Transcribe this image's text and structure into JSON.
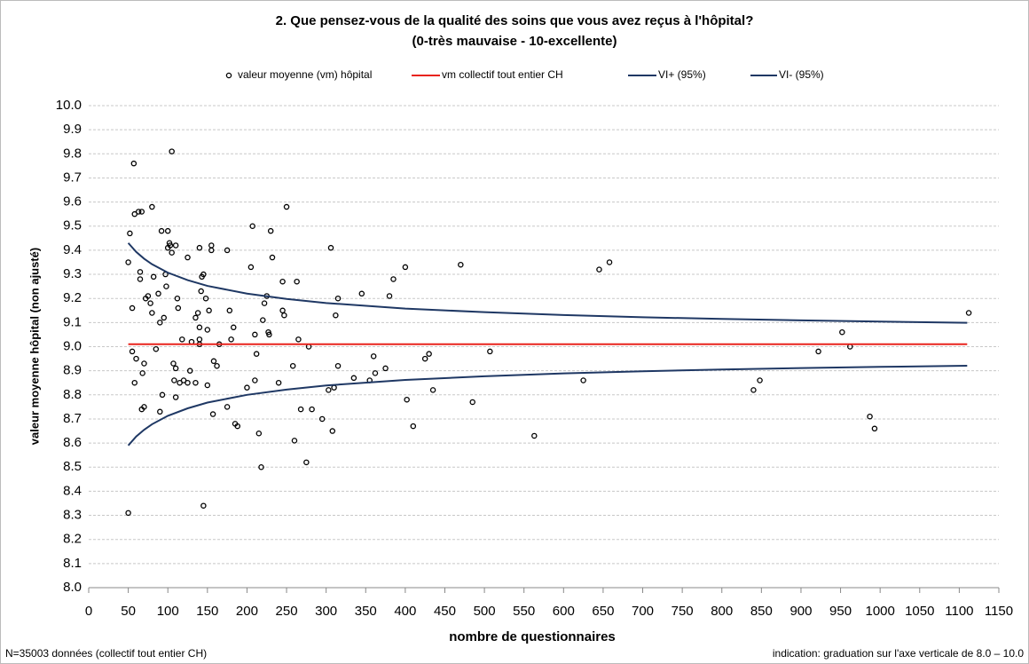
{
  "chart_data": {
    "type": "scatter",
    "title": "2. Que pensez-vous de la qualité des soins que vous avez reçus à l'hôpital?",
    "subtitle": "(0-très mauvaise - 10-excellente)",
    "x_label": "nombre de questionnaires",
    "y_label": "valeur moyenne hôpital (non ajusté)",
    "footnote_left": "N=35003 données (collectif tout entier CH)",
    "footnote_right": "indication: graduation sur l'axe verticale de 8.0 – 10.0",
    "xlim": [
      0,
      1150
    ],
    "xticks": [
      0,
      50,
      100,
      150,
      200,
      250,
      300,
      350,
      400,
      450,
      500,
      550,
      600,
      650,
      700,
      750,
      800,
      850,
      900,
      950,
      1000,
      1050,
      1100,
      1150
    ],
    "ylim": [
      8,
      10
    ],
    "yticks": [
      {
        "value": 8,
        "label": "8.0"
      },
      8.1,
      8.2,
      8.3,
      8.4,
      8.5,
      8.6,
      8.7,
      8.8,
      8.9,
      {
        "value": 9,
        "label": "9.0"
      },
      9.1,
      9.2,
      9.3,
      9.4,
      9.5,
      9.6,
      9.7,
      9.8,
      9.9,
      {
        "value": 10,
        "label": "10.0"
      }
    ],
    "grid": true,
    "series": [
      {
        "name": "valeur moyenne (vm) hôpital",
        "type": "scatter",
        "color": "#000000",
        "x": [
          50,
          52,
          55,
          55,
          57,
          58,
          58,
          60,
          63,
          65,
          65,
          67,
          67,
          68,
          70,
          70,
          72,
          75,
          78,
          80,
          80,
          82,
          85,
          88,
          90,
          90,
          92,
          93,
          95,
          97,
          98,
          100,
          100,
          102,
          103,
          105,
          105,
          107,
          108,
          110,
          110,
          110,
          112,
          113,
          115,
          118,
          120,
          125,
          125,
          128,
          130,
          135,
          135,
          138,
          140,
          140,
          140,
          140,
          142,
          143,
          145,
          145,
          148,
          150,
          150,
          152,
          155,
          155,
          157,
          158,
          162,
          165,
          175,
          175,
          178,
          180,
          183,
          185,
          188,
          200,
          205,
          207,
          210,
          210,
          212,
          215,
          218,
          220,
          222,
          225,
          227,
          228,
          230,
          232,
          240,
          245,
          245,
          247,
          250,
          258,
          260,
          263,
          265,
          268,
          275,
          278,
          282,
          295,
          303,
          306,
          308,
          310,
          312,
          315,
          315,
          335,
          345,
          355,
          360,
          362,
          375,
          380,
          385,
          400,
          402,
          410,
          425,
          430,
          435,
          470,
          485,
          507,
          563,
          625,
          645,
          658,
          840,
          848,
          922,
          952,
          962,
          987,
          993,
          1112,
          50
        ],
        "values": [
          9.35,
          9.47,
          9.16,
          8.98,
          9.76,
          9.55,
          8.85,
          8.95,
          9.56,
          9.28,
          9.31,
          9.56,
          8.74,
          8.89,
          8.75,
          8.93,
          9.2,
          9.21,
          9.18,
          9.58,
          9.14,
          9.29,
          8.99,
          9.22,
          9.1,
          8.73,
          9.48,
          8.8,
          9.12,
          9.3,
          9.25,
          9.41,
          9.48,
          9.43,
          9.42,
          9.81,
          9.39,
          8.93,
          8.86,
          8.79,
          8.91,
          9.42,
          9.2,
          9.16,
          8.85,
          9.03,
          8.86,
          9.37,
          8.85,
          8.9,
          9.02,
          8.85,
          9.12,
          9.14,
          9.41,
          9.03,
          9.01,
          9.08,
          9.23,
          9.29,
          8.34,
          9.3,
          9.2,
          8.84,
          9.07,
          9.15,
          9.42,
          9.4,
          8.72,
          8.94,
          8.92,
          9.01,
          9.4,
          8.75,
          9.15,
          9.03,
          9.08,
          8.68,
          8.67,
          8.83,
          9.33,
          9.5,
          8.86,
          9.05,
          8.97,
          8.64,
          8.5,
          9.11,
          9.18,
          9.21,
          9.06,
          9.05,
          9.48,
          9.37,
          8.85,
          9.27,
          9.15,
          9.13,
          9.58,
          8.92,
          8.61,
          9.27,
          9.03,
          8.74,
          8.52,
          9,
          8.74,
          8.7,
          8.82,
          9.41,
          8.65,
          8.83,
          9.13,
          9.2,
          8.92,
          8.87,
          9.22,
          8.86,
          8.96,
          8.89,
          8.91,
          9.21,
          9.28,
          9.33,
          8.78,
          8.67,
          8.95,
          8.97,
          8.82,
          9.34,
          8.77,
          8.98,
          8.63,
          8.86,
          9.32,
          9.35,
          8.82,
          8.86,
          8.98,
          9.06,
          9,
          8.71,
          8.66,
          9.14,
          8.31
        ]
      },
      {
        "name": "vm collectif tout entier CH",
        "type": "line",
        "color": "#e8231d",
        "x": [
          50,
          1110
        ],
        "values": [
          9.01,
          9.01
        ]
      },
      {
        "name": "VI+ (95%)",
        "type": "line",
        "color": "#1f3864",
        "x": [
          50,
          60,
          70,
          80,
          100,
          125,
          150,
          200,
          250,
          300,
          400,
          500,
          600,
          700,
          800,
          900,
          1000,
          1110
        ],
        "values": [
          9.43,
          9.393,
          9.365,
          9.342,
          9.307,
          9.276,
          9.252,
          9.22,
          9.198,
          9.181,
          9.158,
          9.143,
          9.131,
          9.122,
          9.115,
          9.109,
          9.104,
          9.099
        ]
      },
      {
        "name": "VI- (95%)",
        "type": "line",
        "color": "#1f3864",
        "x": [
          50,
          60,
          70,
          80,
          100,
          125,
          150,
          200,
          250,
          300,
          400,
          500,
          600,
          700,
          800,
          900,
          1000,
          1110
        ],
        "values": [
          8.59,
          8.627,
          8.655,
          8.678,
          8.713,
          8.744,
          8.768,
          8.8,
          8.822,
          8.839,
          8.862,
          8.877,
          8.889,
          8.898,
          8.905,
          8.911,
          8.916,
          8.921
        ]
      }
    ]
  }
}
